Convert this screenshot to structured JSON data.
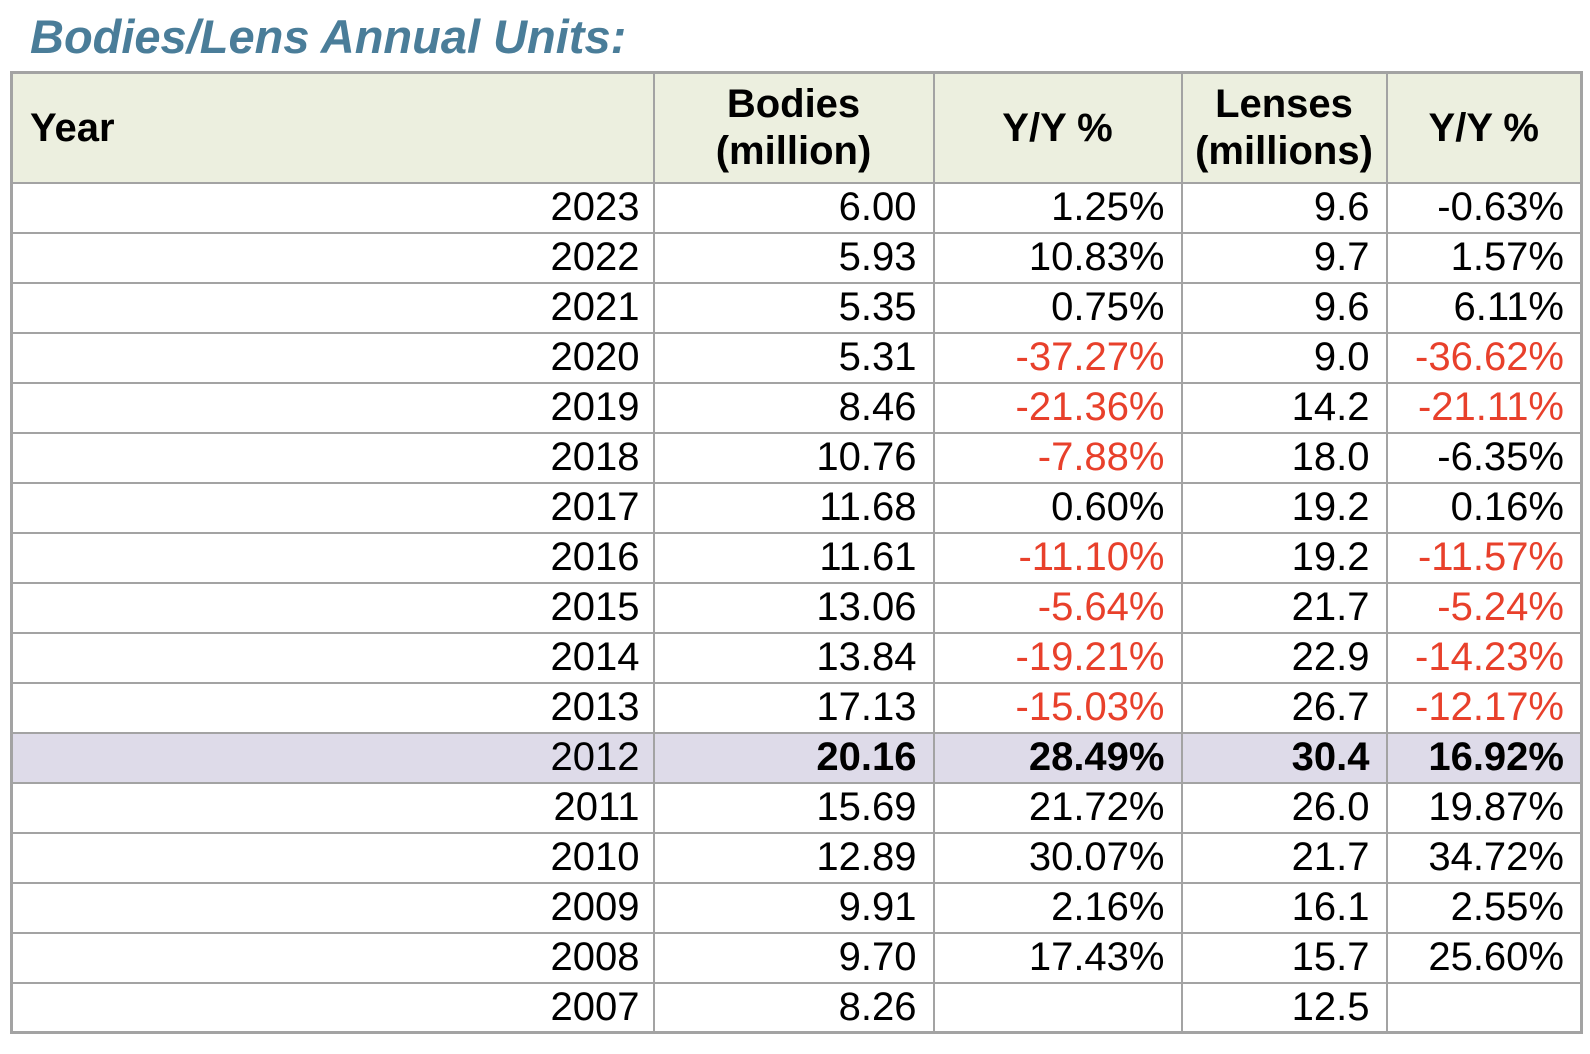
{
  "title": "Bodies/Lens Annual Units:",
  "colors": {
    "title": "#4a7d99",
    "header_bg": "#ecefdf",
    "highlight_row_bg": "#dedbe9",
    "negative_value": "#e8402b",
    "table_border": "#a3a3a3",
    "text": "#000000"
  },
  "table": {
    "headers": [
      {
        "line1": "Year",
        "line2": ""
      },
      {
        "line1": "Bodies",
        "line2": "(million)"
      },
      {
        "line1": "Y/Y %",
        "line2": ""
      },
      {
        "line1": "Lenses",
        "line2": "(millions)"
      },
      {
        "line1": "Y/Y %",
        "line2": ""
      }
    ],
    "rows": [
      {
        "year": "2023",
        "bodies": "6.00",
        "bodies_yy": "1.25%",
        "bodies_yy_red": false,
        "lenses": "9.6",
        "lenses_yy": "-0.63%",
        "lenses_yy_red": false,
        "highlight": false
      },
      {
        "year": "2022",
        "bodies": "5.93",
        "bodies_yy": "10.83%",
        "bodies_yy_red": false,
        "lenses": "9.7",
        "lenses_yy": "1.57%",
        "lenses_yy_red": false,
        "highlight": false
      },
      {
        "year": "2021",
        "bodies": "5.35",
        "bodies_yy": "0.75%",
        "bodies_yy_red": false,
        "lenses": "9.6",
        "lenses_yy": "6.11%",
        "lenses_yy_red": false,
        "highlight": false
      },
      {
        "year": "2020",
        "bodies": "5.31",
        "bodies_yy": "-37.27%",
        "bodies_yy_red": true,
        "lenses": "9.0",
        "lenses_yy": "-36.62%",
        "lenses_yy_red": true,
        "highlight": false
      },
      {
        "year": "2019",
        "bodies": "8.46",
        "bodies_yy": "-21.36%",
        "bodies_yy_red": true,
        "lenses": "14.2",
        "lenses_yy": "-21.11%",
        "lenses_yy_red": true,
        "highlight": false
      },
      {
        "year": "2018",
        "bodies": "10.76",
        "bodies_yy": "-7.88%",
        "bodies_yy_red": true,
        "lenses": "18.0",
        "lenses_yy": "-6.35%",
        "lenses_yy_red": false,
        "highlight": false
      },
      {
        "year": "2017",
        "bodies": "11.68",
        "bodies_yy": "0.60%",
        "bodies_yy_red": false,
        "lenses": "19.2",
        "lenses_yy": "0.16%",
        "lenses_yy_red": false,
        "highlight": false
      },
      {
        "year": "2016",
        "bodies": "11.61",
        "bodies_yy": "-11.10%",
        "bodies_yy_red": true,
        "lenses": "19.2",
        "lenses_yy": "-11.57%",
        "lenses_yy_red": true,
        "highlight": false
      },
      {
        "year": "2015",
        "bodies": "13.06",
        "bodies_yy": "-5.64%",
        "bodies_yy_red": true,
        "lenses": "21.7",
        "lenses_yy": "-5.24%",
        "lenses_yy_red": true,
        "highlight": false
      },
      {
        "year": "2014",
        "bodies": "13.84",
        "bodies_yy": "-19.21%",
        "bodies_yy_red": true,
        "lenses": "22.9",
        "lenses_yy": "-14.23%",
        "lenses_yy_red": true,
        "highlight": false
      },
      {
        "year": "2013",
        "bodies": "17.13",
        "bodies_yy": "-15.03%",
        "bodies_yy_red": true,
        "lenses": "26.7",
        "lenses_yy": "-12.17%",
        "lenses_yy_red": true,
        "highlight": false
      },
      {
        "year": "2012",
        "bodies": "20.16",
        "bodies_yy": "28.49%",
        "bodies_yy_red": false,
        "lenses": "30.4",
        "lenses_yy": "16.92%",
        "lenses_yy_red": false,
        "highlight": true
      },
      {
        "year": "2011",
        "bodies": "15.69",
        "bodies_yy": "21.72%",
        "bodies_yy_red": false,
        "lenses": "26.0",
        "lenses_yy": "19.87%",
        "lenses_yy_red": false,
        "highlight": false
      },
      {
        "year": "2010",
        "bodies": "12.89",
        "bodies_yy": "30.07%",
        "bodies_yy_red": false,
        "lenses": "21.7",
        "lenses_yy": "34.72%",
        "lenses_yy_red": false,
        "highlight": false
      },
      {
        "year": "2009",
        "bodies": "9.91",
        "bodies_yy": "2.16%",
        "bodies_yy_red": false,
        "lenses": "16.1",
        "lenses_yy": "2.55%",
        "lenses_yy_red": false,
        "highlight": false
      },
      {
        "year": "2008",
        "bodies": "9.70",
        "bodies_yy": "17.43%",
        "bodies_yy_red": false,
        "lenses": "15.7",
        "lenses_yy": "25.60%",
        "lenses_yy_red": false,
        "highlight": false
      },
      {
        "year": "2007",
        "bodies": "8.26",
        "bodies_yy": "",
        "bodies_yy_red": false,
        "lenses": "12.5",
        "lenses_yy": "",
        "lenses_yy_red": false,
        "highlight": false
      }
    ]
  }
}
